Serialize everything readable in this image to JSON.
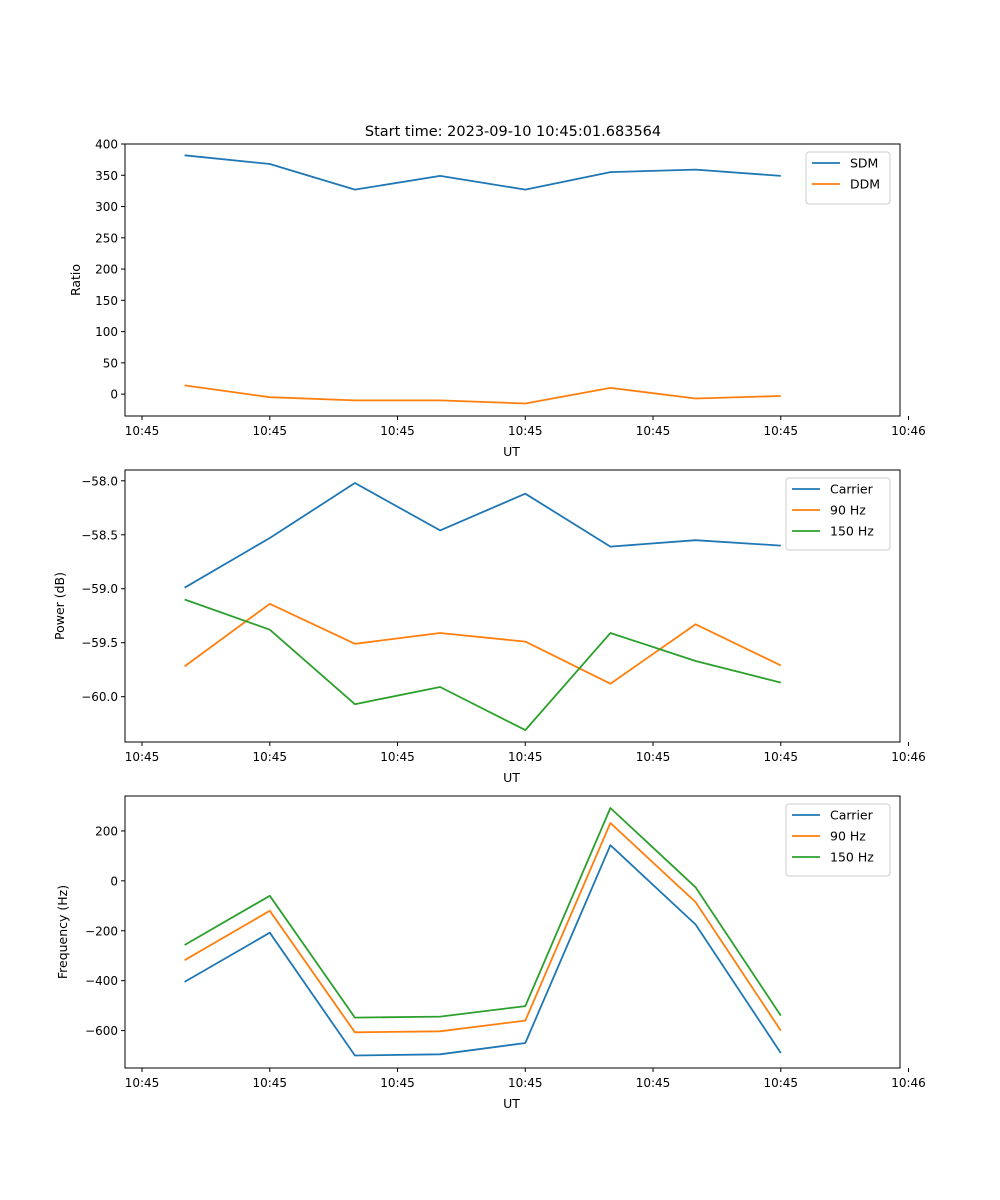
{
  "figure": {
    "suptitle": "Start time: 2023-09-10 10:45:01.683564"
  },
  "chart_data": [
    {
      "type": "line",
      "title": "Start time: 2023-09-10 10:45:01.683564",
      "xlabel": "UT",
      "ylabel": "Ratio",
      "x": [
        1,
        2,
        3,
        4,
        5,
        6,
        7,
        8
      ],
      "xlim": [
        0.3,
        9.4
      ],
      "xticks": [
        0.5,
        2,
        3.5,
        5,
        6.5,
        8,
        9.5
      ],
      "xtick_labels": [
        "10:45",
        "10:45",
        "10:45",
        "10:45",
        "10:45",
        "10:45",
        "10:46"
      ],
      "ylim": [
        -35,
        400
      ],
      "yticks": [
        0,
        50,
        100,
        150,
        200,
        250,
        300,
        350,
        400
      ],
      "ytick_labels": [
        "0",
        "50",
        "100",
        "150",
        "200",
        "250",
        "300",
        "350",
        "400"
      ],
      "legend_position": "top-right",
      "series": [
        {
          "name": "SDM",
          "color": "#1f77b4",
          "values": [
            382,
            368,
            327,
            349,
            327,
            355,
            359,
            349
          ]
        },
        {
          "name": "DDM",
          "color": "#ff7f0e",
          "values": [
            14,
            -5,
            -10,
            -10,
            -15,
            10,
            -7,
            -3
          ]
        }
      ]
    },
    {
      "type": "line",
      "title": "",
      "xlabel": "UT",
      "ylabel": "Power (dB)",
      "x": [
        1,
        2,
        3,
        4,
        5,
        6,
        7,
        8
      ],
      "xlim": [
        0.3,
        9.4
      ],
      "xticks": [
        0.5,
        2,
        3.5,
        5,
        6.5,
        8,
        9.5
      ],
      "xtick_labels": [
        "10:45",
        "10:45",
        "10:45",
        "10:45",
        "10:45",
        "10:45",
        "10:46"
      ],
      "ylim": [
        -60.42,
        -57.9
      ],
      "yticks": [
        -60.0,
        -59.5,
        -59.0,
        -58.5,
        -58.0
      ],
      "ytick_labels": [
        "−60.0",
        "−59.5",
        "−59.0",
        "−58.5",
        "−58.0"
      ],
      "legend_position": "top-right",
      "series": [
        {
          "name": "Carrier",
          "color": "#1f77b4",
          "values": [
            -58.99,
            -58.53,
            -58.02,
            -58.46,
            -58.12,
            -58.61,
            -58.55,
            -58.6
          ]
        },
        {
          "name": "90 Hz",
          "color": "#ff7f0e",
          "values": [
            -59.72,
            -59.14,
            -59.51,
            -59.41,
            -59.49,
            -59.88,
            -59.33,
            -59.71
          ]
        },
        {
          "name": "150 Hz",
          "color": "#2ca02c",
          "values": [
            -59.1,
            -59.38,
            -60.07,
            -59.91,
            -60.31,
            -59.41,
            -59.67,
            -59.87
          ]
        }
      ]
    },
    {
      "type": "line",
      "title": "",
      "xlabel": "UT",
      "ylabel": "Frequency (Hz)",
      "x": [
        1,
        2,
        3,
        4,
        5,
        6,
        7,
        8
      ],
      "xlim": [
        0.3,
        9.4
      ],
      "xticks": [
        0.5,
        2,
        3.5,
        5,
        6.5,
        8,
        9.5
      ],
      "xtick_labels": [
        "10:45",
        "10:45",
        "10:45",
        "10:45",
        "10:45",
        "10:45",
        "10:46"
      ],
      "ylim": [
        -750,
        340
      ],
      "yticks": [
        -600,
        -400,
        -200,
        0,
        200
      ],
      "ytick_labels": [
        "−600",
        "−400",
        "−200",
        "0",
        "200"
      ],
      "legend_position": "top-right",
      "series": [
        {
          "name": "Carrier",
          "color": "#1f77b4",
          "values": [
            -405,
            -208,
            -700,
            -695,
            -650,
            143,
            -175,
            -690
          ]
        },
        {
          "name": "90 Hz",
          "color": "#ff7f0e",
          "values": [
            -318,
            -120,
            -607,
            -603,
            -560,
            232,
            -85,
            -600
          ]
        },
        {
          "name": "150 Hz",
          "color": "#2ca02c",
          "values": [
            -257,
            -60,
            -548,
            -544,
            -502,
            292,
            -26,
            -540
          ]
        }
      ]
    }
  ]
}
